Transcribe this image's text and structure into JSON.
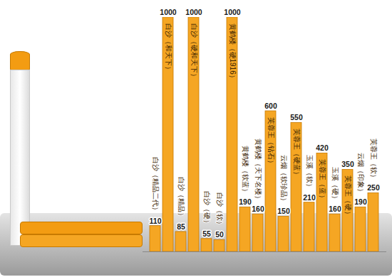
{
  "chart_data": {
    "type": "bar",
    "categories": [
      "白沙（精品二代）",
      "白沙（和天下）",
      "白沙（精品）",
      "白沙（硬和天下）",
      "白沙（硬）",
      "白沙（软）",
      "黄鹤楼（硬1916）",
      "黄鹤楼（软蓝）",
      "黄鹤楼（天下名楼）",
      "芙蓉王（钻石）",
      "云烟（软珍品）",
      "芙蓉王（硬蓝）",
      "玉溪（软）",
      "芙蓉王（蓝）",
      "玉溪（硬）",
      "芙蓉王（硬）",
      "云烟（印象）",
      "芙蓉王（软）"
    ],
    "values": [
      110,
      1000,
      85,
      1000,
      55,
      50,
      1000,
      190,
      160,
      600,
      150,
      550,
      210,
      420,
      160,
      350,
      190,
      250
    ],
    "color": "#f5a623",
    "ylim": [
      0,
      1000
    ],
    "grid": false,
    "data_labels": true,
    "tick_labels": false
  }
}
